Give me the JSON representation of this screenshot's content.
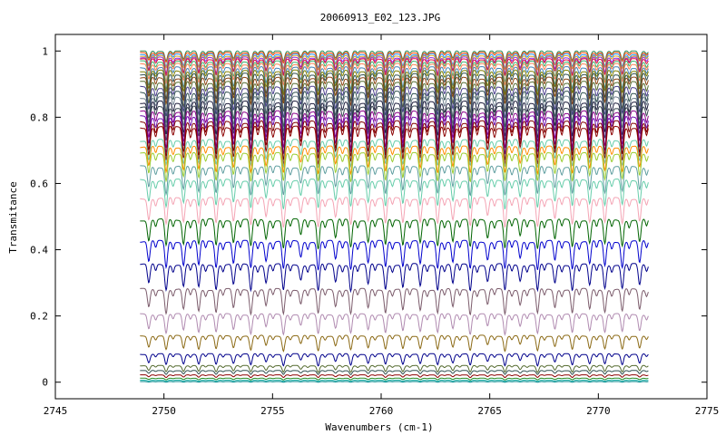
{
  "chart_data": {
    "type": "line",
    "title": "20060913_E02_123.JPG",
    "xlabel": "Wavenumbers (cm-1)",
    "ylabel": "Transmitance",
    "xlim": [
      2745,
      2775
    ],
    "ylim": [
      -0.05,
      1.05
    ],
    "x_ticks": [
      2745,
      2750,
      2755,
      2760,
      2765,
      2770,
      2775
    ],
    "x_tick_labels": [
      "2745",
      "2750",
      "2755",
      "2760",
      "2765",
      "2770",
      "2775"
    ],
    "y_ticks": [
      0,
      0.2,
      0.4,
      0.6,
      0.8,
      1
    ],
    "y_tick_labels": [
      "0",
      "0.2",
      "0.4",
      "0.6",
      "0.8",
      "1"
    ],
    "x_range": [
      2748.9,
      2772.3
    ],
    "grid": false,
    "legend": "none",
    "absorption_lines_cm1": [
      2749.3,
      2750.1,
      2750.9,
      2751.6,
      2752.4,
      2753.2,
      2754.0,
      2754.7,
      2755.5,
      2756.3,
      2757.1,
      2757.9,
      2758.6,
      2759.4,
      2760.2,
      2761.0,
      2761.8,
      2762.6,
      2763.3,
      2764.1,
      2764.9,
      2765.7,
      2766.4,
      2767.2,
      2768.0,
      2768.8,
      2769.6,
      2770.3,
      2771.1,
      2771.9
    ],
    "series": [
      {
        "baseline": 1.0,
        "depth": 0.03,
        "color": "#2e8b57"
      },
      {
        "baseline": 0.995,
        "depth": 0.03,
        "color": "#ff4500"
      },
      {
        "baseline": 0.99,
        "depth": 0.04,
        "color": "#1e90ff"
      },
      {
        "baseline": 0.985,
        "depth": 0.04,
        "color": "#daa520"
      },
      {
        "baseline": 0.98,
        "depth": 0.05,
        "color": "#8a2be2"
      },
      {
        "baseline": 0.975,
        "depth": 0.05,
        "color": "#dc143c"
      },
      {
        "baseline": 0.968,
        "depth": 0.06,
        "color": "#3cb371"
      },
      {
        "baseline": 0.96,
        "depth": 0.06,
        "color": "#ff7f50"
      },
      {
        "baseline": 0.95,
        "depth": 0.07,
        "color": "#4682b4"
      },
      {
        "baseline": 0.94,
        "depth": 0.07,
        "color": "#808000"
      },
      {
        "baseline": 0.93,
        "depth": 0.08,
        "color": "#2f4f4f"
      },
      {
        "baseline": 0.918,
        "depth": 0.08,
        "color": "#8b4513"
      },
      {
        "baseline": 0.905,
        "depth": 0.09,
        "color": "#556b2f"
      },
      {
        "baseline": 0.89,
        "depth": 0.09,
        "color": "#483d8b"
      },
      {
        "baseline": 0.875,
        "depth": 0.1,
        "color": "#2f4f4f"
      },
      {
        "baseline": 0.86,
        "depth": 0.1,
        "color": "#708090"
      },
      {
        "baseline": 0.845,
        "depth": 0.105,
        "color": "#1c1c3c"
      },
      {
        "baseline": 0.83,
        "depth": 0.105,
        "color": "#36454f"
      },
      {
        "baseline": 0.815,
        "depth": 0.11,
        "color": "#8b008b"
      },
      {
        "baseline": 0.8,
        "depth": 0.11,
        "color": "#6a0dad"
      },
      {
        "baseline": 0.785,
        "depth": 0.11,
        "color": "#800000"
      },
      {
        "baseline": 0.77,
        "depth": 0.11,
        "color": "#8b0000"
      },
      {
        "baseline": 0.73,
        "depth": 0.08,
        "color": "#66cdaa"
      },
      {
        "baseline": 0.71,
        "depth": 0.08,
        "color": "#ff8c00"
      },
      {
        "baseline": 0.69,
        "depth": 0.085,
        "color": "#9acd32"
      },
      {
        "baseline": 0.65,
        "depth": 0.085,
        "color": "#5f9ea0"
      },
      {
        "baseline": 0.61,
        "depth": 0.085,
        "color": "#66cdaa"
      },
      {
        "baseline": 0.555,
        "depth": 0.085,
        "color": "#f4a4b4"
      },
      {
        "baseline": 0.49,
        "depth": 0.085,
        "color": "#006400"
      },
      {
        "baseline": 0.425,
        "depth": 0.085,
        "color": "#0000cd"
      },
      {
        "baseline": 0.355,
        "depth": 0.08,
        "color": "#00008b"
      },
      {
        "baseline": 0.28,
        "depth": 0.075,
        "color": "#7b5b6b"
      },
      {
        "baseline": 0.205,
        "depth": 0.06,
        "color": "#b08ab0"
      },
      {
        "baseline": 0.14,
        "depth": 0.045,
        "color": "#8b6914"
      },
      {
        "baseline": 0.085,
        "depth": 0.035,
        "color": "#00008b"
      },
      {
        "baseline": 0.05,
        "depth": 0.02,
        "color": "#556b2f"
      },
      {
        "baseline": 0.035,
        "depth": 0.012,
        "color": "#2f4f4f"
      },
      {
        "baseline": 0.022,
        "depth": 0.008,
        "color": "#8b0000"
      },
      {
        "baseline": 0.012,
        "depth": 0.005,
        "color": "#228b22"
      },
      {
        "baseline": 0.006,
        "depth": 0.003,
        "color": "#20b2aa"
      },
      {
        "baseline": 0.002,
        "depth": 0.002,
        "color": "#00868b"
      }
    ]
  }
}
